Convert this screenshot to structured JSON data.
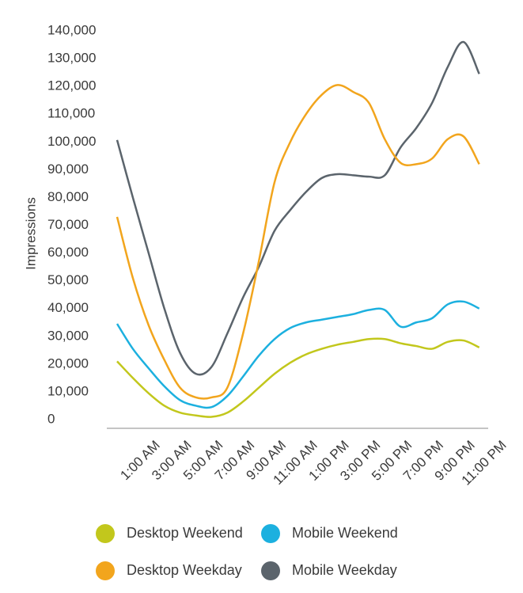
{
  "chart_data": {
    "type": "line",
    "y_label": "Impressions",
    "categories": [
      null,
      "1:00 AM",
      null,
      "3:00 AM",
      null,
      "5:00 AM",
      null,
      "7:00 AM",
      null,
      "9:00 AM",
      null,
      "11:00 AM",
      null,
      "1:00 PM",
      null,
      "3:00 PM",
      null,
      "5:00 PM",
      null,
      "7:00 PM",
      null,
      "9:00 PM",
      null,
      "11:00 PM"
    ],
    "ylim": [
      0,
      140000
    ],
    "yticks": [
      0,
      {
        "value": 10000,
        "label": "10,000"
      },
      {
        "value": 20000,
        "label": "20,000"
      },
      {
        "value": 30000,
        "label": "30,000"
      },
      {
        "value": 40000,
        "label": "40,000"
      },
      {
        "value": 50000,
        "label": "50,000"
      },
      {
        "value": 60000,
        "label": "60,000"
      },
      {
        "value": 70000,
        "label": "70,000"
      },
      {
        "value": 80000,
        "label": "80,000"
      },
      {
        "value": 90000,
        "label": "90,000"
      },
      {
        "value": 100000,
        "label": "100,000"
      },
      {
        "value": 110000,
        "label": "110,000"
      },
      {
        "value": 120000,
        "label": "120,000"
      },
      {
        "value": 130000,
        "label": "130,000"
      },
      {
        "value": 140000,
        "label": "140,000"
      }
    ],
    "series": [
      {
        "name": "Desktop Weekend",
        "color": "#c2c71c",
        "values": [
          21000,
          15000,
          9500,
          5000,
          2500,
          1500,
          1000,
          2500,
          6500,
          11500,
          16500,
          20500,
          23500,
          25500,
          27000,
          28000,
          29000,
          29000,
          27500,
          26500,
          25500,
          28000,
          28500,
          26000
        ]
      },
      {
        "name": "Mobile Weekend",
        "color": "#1cb0df",
        "values": [
          34500,
          25500,
          18500,
          12000,
          7000,
          5000,
          4500,
          8500,
          15500,
          23000,
          29000,
          33000,
          35000,
          36000,
          37000,
          38000,
          39500,
          39500,
          33500,
          35000,
          36500,
          41500,
          42500,
          40000
        ]
      },
      {
        "name": "Desktop Weekday",
        "color": "#f2a51d",
        "values": [
          73000,
          51000,
          34000,
          21500,
          11500,
          8000,
          8000,
          11500,
          31000,
          57000,
          85500,
          100000,
          110000,
          117000,
          120500,
          118000,
          114000,
          101000,
          92500,
          92000,
          94000,
          101000,
          102000,
          92000
        ]
      },
      {
        "name": "Mobile Weekday",
        "color": "#5b646c",
        "values": [
          100700,
          80000,
          60000,
          40000,
          24000,
          16500,
          19000,
          31000,
          44000,
          55000,
          68000,
          75500,
          82000,
          87000,
          88400,
          88000,
          87500,
          88000,
          98000,
          105000,
          114000,
          127000,
          136000,
          124500
        ]
      }
    ]
  }
}
